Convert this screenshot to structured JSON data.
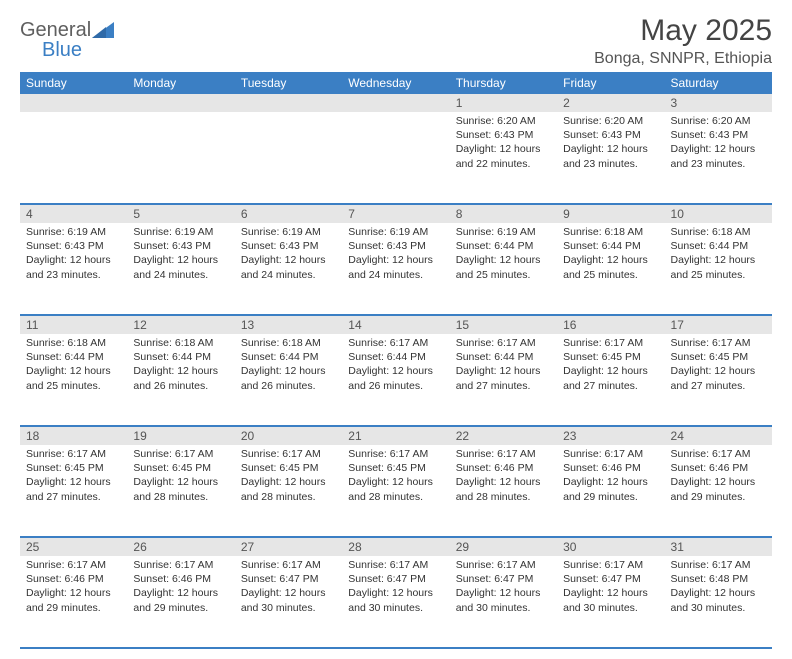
{
  "brand": {
    "name_top": "General",
    "name_bottom": "Blue"
  },
  "title": "May 2025",
  "location": "Bonga, SNNPR, Ethiopia",
  "colors": {
    "header_bg": "#3b7fc4",
    "header_text": "#ffffff",
    "daynum_bg": "#e6e6e6",
    "border": "#3b7fc4",
    "text": "#333333",
    "brand_gray": "#5f5f5f"
  },
  "typography": {
    "title_fontsize": 30,
    "location_fontsize": 16,
    "header_fontsize": 12,
    "body_fontsize": 10.5
  },
  "weekdays": [
    "Sunday",
    "Monday",
    "Tuesday",
    "Wednesday",
    "Thursday",
    "Friday",
    "Saturday"
  ],
  "weeks": [
    [
      null,
      null,
      null,
      null,
      {
        "day": "1",
        "sunrise": "6:20 AM",
        "sunset": "6:43 PM",
        "daylight": "12 hours and 22 minutes."
      },
      {
        "day": "2",
        "sunrise": "6:20 AM",
        "sunset": "6:43 PM",
        "daylight": "12 hours and 23 minutes."
      },
      {
        "day": "3",
        "sunrise": "6:20 AM",
        "sunset": "6:43 PM",
        "daylight": "12 hours and 23 minutes."
      }
    ],
    [
      {
        "day": "4",
        "sunrise": "6:19 AM",
        "sunset": "6:43 PM",
        "daylight": "12 hours and 23 minutes."
      },
      {
        "day": "5",
        "sunrise": "6:19 AM",
        "sunset": "6:43 PM",
        "daylight": "12 hours and 24 minutes."
      },
      {
        "day": "6",
        "sunrise": "6:19 AM",
        "sunset": "6:43 PM",
        "daylight": "12 hours and 24 minutes."
      },
      {
        "day": "7",
        "sunrise": "6:19 AM",
        "sunset": "6:43 PM",
        "daylight": "12 hours and 24 minutes."
      },
      {
        "day": "8",
        "sunrise": "6:19 AM",
        "sunset": "6:44 PM",
        "daylight": "12 hours and 25 minutes."
      },
      {
        "day": "9",
        "sunrise": "6:18 AM",
        "sunset": "6:44 PM",
        "daylight": "12 hours and 25 minutes."
      },
      {
        "day": "10",
        "sunrise": "6:18 AM",
        "sunset": "6:44 PM",
        "daylight": "12 hours and 25 minutes."
      }
    ],
    [
      {
        "day": "11",
        "sunrise": "6:18 AM",
        "sunset": "6:44 PM",
        "daylight": "12 hours and 25 minutes."
      },
      {
        "day": "12",
        "sunrise": "6:18 AM",
        "sunset": "6:44 PM",
        "daylight": "12 hours and 26 minutes."
      },
      {
        "day": "13",
        "sunrise": "6:18 AM",
        "sunset": "6:44 PM",
        "daylight": "12 hours and 26 minutes."
      },
      {
        "day": "14",
        "sunrise": "6:17 AM",
        "sunset": "6:44 PM",
        "daylight": "12 hours and 26 minutes."
      },
      {
        "day": "15",
        "sunrise": "6:17 AM",
        "sunset": "6:44 PM",
        "daylight": "12 hours and 27 minutes."
      },
      {
        "day": "16",
        "sunrise": "6:17 AM",
        "sunset": "6:45 PM",
        "daylight": "12 hours and 27 minutes."
      },
      {
        "day": "17",
        "sunrise": "6:17 AM",
        "sunset": "6:45 PM",
        "daylight": "12 hours and 27 minutes."
      }
    ],
    [
      {
        "day": "18",
        "sunrise": "6:17 AM",
        "sunset": "6:45 PM",
        "daylight": "12 hours and 27 minutes."
      },
      {
        "day": "19",
        "sunrise": "6:17 AM",
        "sunset": "6:45 PM",
        "daylight": "12 hours and 28 minutes."
      },
      {
        "day": "20",
        "sunrise": "6:17 AM",
        "sunset": "6:45 PM",
        "daylight": "12 hours and 28 minutes."
      },
      {
        "day": "21",
        "sunrise": "6:17 AM",
        "sunset": "6:45 PM",
        "daylight": "12 hours and 28 minutes."
      },
      {
        "day": "22",
        "sunrise": "6:17 AM",
        "sunset": "6:46 PM",
        "daylight": "12 hours and 28 minutes."
      },
      {
        "day": "23",
        "sunrise": "6:17 AM",
        "sunset": "6:46 PM",
        "daylight": "12 hours and 29 minutes."
      },
      {
        "day": "24",
        "sunrise": "6:17 AM",
        "sunset": "6:46 PM",
        "daylight": "12 hours and 29 minutes."
      }
    ],
    [
      {
        "day": "25",
        "sunrise": "6:17 AM",
        "sunset": "6:46 PM",
        "daylight": "12 hours and 29 minutes."
      },
      {
        "day": "26",
        "sunrise": "6:17 AM",
        "sunset": "6:46 PM",
        "daylight": "12 hours and 29 minutes."
      },
      {
        "day": "27",
        "sunrise": "6:17 AM",
        "sunset": "6:47 PM",
        "daylight": "12 hours and 30 minutes."
      },
      {
        "day": "28",
        "sunrise": "6:17 AM",
        "sunset": "6:47 PM",
        "daylight": "12 hours and 30 minutes."
      },
      {
        "day": "29",
        "sunrise": "6:17 AM",
        "sunset": "6:47 PM",
        "daylight": "12 hours and 30 minutes."
      },
      {
        "day": "30",
        "sunrise": "6:17 AM",
        "sunset": "6:47 PM",
        "daylight": "12 hours and 30 minutes."
      },
      {
        "day": "31",
        "sunrise": "6:17 AM",
        "sunset": "6:48 PM",
        "daylight": "12 hours and 30 minutes."
      }
    ]
  ],
  "labels": {
    "sunrise_prefix": "Sunrise: ",
    "sunset_prefix": "Sunset: ",
    "daylight_prefix": "Daylight: "
  }
}
